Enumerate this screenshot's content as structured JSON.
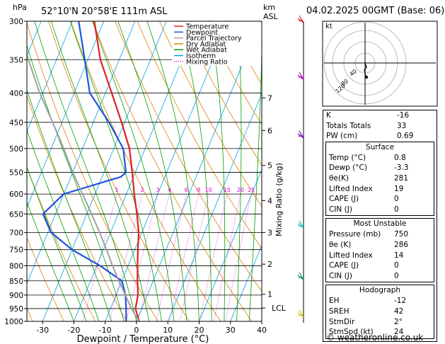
{
  "header": {
    "location": "52°10'N  20°58'E  111m  ASL",
    "datetime": "04.02.2025  00GMT  (Base: 06)",
    "pressure_unit": "hPa",
    "km_label": "km",
    "asl_label": "ASL"
  },
  "chart_data": {
    "type": "line",
    "title": "",
    "xlabel": "Dewpoint / Temperature (°C)",
    "ylabel": "hPa",
    "xlim": [
      -35,
      40
    ],
    "ylim": [
      1000,
      300
    ],
    "y_scale": "log",
    "grid": true,
    "pressure_levels": [
      300,
      350,
      400,
      450,
      500,
      550,
      600,
      650,
      700,
      750,
      800,
      850,
      900,
      950,
      1000
    ],
    "x_ticks": [
      -30,
      -20,
      -10,
      0,
      10,
      20,
      30,
      40
    ],
    "km_ticks": [
      {
        "label": "7",
        "p": 408
      },
      {
        "label": "6",
        "p": 465
      },
      {
        "label": "5",
        "p": 535
      },
      {
        "label": "4",
        "p": 616
      },
      {
        "label": "3",
        "p": 700
      },
      {
        "label": "2",
        "p": 795
      },
      {
        "label": "1",
        "p": 897
      },
      {
        "label": "LCL",
        "p": 948
      }
    ],
    "mixing_ratio_label": "Mixing Ratio (g/kg)",
    "mixing_ratio_values": [
      "1",
      "2",
      "3",
      "4",
      "6",
      "8",
      "10",
      "15",
      "20",
      "25"
    ],
    "legend": [
      {
        "name": "Temperature",
        "color": "#e02020"
      },
      {
        "name": "Dewpoint",
        "color": "#2050e0"
      },
      {
        "name": "Parcel Trajectory",
        "color": "#a0a0a0"
      },
      {
        "name": "Dry Adiabat",
        "color": "#e08000"
      },
      {
        "name": "Wet Adiabat",
        "color": "#00a000"
      },
      {
        "name": "Isotherm",
        "color": "#00a0e0"
      },
      {
        "name": "Mixing Ratio",
        "color": "#e000e0"
      }
    ],
    "legend_position": "top-right",
    "series": [
      {
        "name": "Temperature",
        "color": "#e02020",
        "points": [
          [
            1000,
            0.8
          ],
          [
            950,
            -2
          ],
          [
            900,
            -3
          ],
          [
            850,
            -5
          ],
          [
            800,
            -7
          ],
          [
            750,
            -9
          ],
          [
            700,
            -11
          ],
          [
            650,
            -14
          ],
          [
            600,
            -17.5
          ],
          [
            550,
            -21
          ],
          [
            500,
            -25
          ],
          [
            450,
            -31
          ],
          [
            400,
            -38
          ],
          [
            350,
            -46
          ],
          [
            300,
            -53
          ]
        ]
      },
      {
        "name": "Dewpoint",
        "color": "#2050e0",
        "points": [
          [
            1000,
            -3.3
          ],
          [
            950,
            -5
          ],
          [
            900,
            -7
          ],
          [
            850,
            -10
          ],
          [
            800,
            -19
          ],
          [
            750,
            -30
          ],
          [
            700,
            -39
          ],
          [
            650,
            -44
          ],
          [
            600,
            -40
          ],
          [
            560,
            -24
          ],
          [
            550,
            -23
          ],
          [
            500,
            -27
          ],
          [
            450,
            -35
          ],
          [
            400,
            -45
          ],
          [
            350,
            -51
          ],
          [
            300,
            -58
          ]
        ]
      },
      {
        "name": "Parcel Trajectory",
        "color": "#a0a0a0",
        "points": [
          [
            1000,
            0.8
          ],
          [
            948,
            -3.5
          ],
          [
            900,
            -7
          ],
          [
            850,
            -11
          ],
          [
            800,
            -15
          ],
          [
            750,
            -19
          ],
          [
            700,
            -23.5
          ],
          [
            650,
            -28.5
          ],
          [
            600,
            -34
          ],
          [
            550,
            -40
          ],
          [
            500,
            -46
          ],
          [
            450,
            -53
          ],
          [
            400,
            -61
          ],
          [
            350,
            -69
          ],
          [
            300,
            -78
          ]
        ]
      }
    ]
  },
  "hodograph": {
    "label": "kt",
    "ring_labels": [
      "120",
      "80",
      "40"
    ]
  },
  "indices": {
    "rows": [
      {
        "k": "K",
        "v": "-16"
      },
      {
        "k": "Totals Totals",
        "v": "33"
      },
      {
        "k": "PW (cm)",
        "v": "0.69"
      }
    ]
  },
  "surface": {
    "title": "Surface",
    "rows": [
      {
        "k": "Temp (°C)",
        "v": "0.8"
      },
      {
        "k": "Dewp (°C)",
        "v": "-3.3"
      },
      {
        "k": "θe(K)",
        "v": "281"
      },
      {
        "k": "Lifted Index",
        "v": "19"
      },
      {
        "k": "CAPE (J)",
        "v": "0"
      },
      {
        "k": "CIN (J)",
        "v": "0"
      }
    ]
  },
  "most_unstable": {
    "title": "Most Unstable",
    "rows": [
      {
        "k": "Pressure (mb)",
        "v": "750"
      },
      {
        "k": "θe (K)",
        "v": "286"
      },
      {
        "k": "Lifted Index",
        "v": "14"
      },
      {
        "k": "CAPE (J)",
        "v": "0"
      },
      {
        "k": "CIN (J)",
        "v": "0"
      }
    ]
  },
  "hodograph_table": {
    "title": "Hodograph",
    "rows": [
      {
        "k": "EH",
        "v": "-12"
      },
      {
        "k": "SREH",
        "v": "42"
      },
      {
        "k": "StmDir",
        "v": "2°"
      },
      {
        "k": "StmSpd (kt)",
        "v": "24"
      }
    ]
  },
  "footer": "© weatheronline.co.uk"
}
